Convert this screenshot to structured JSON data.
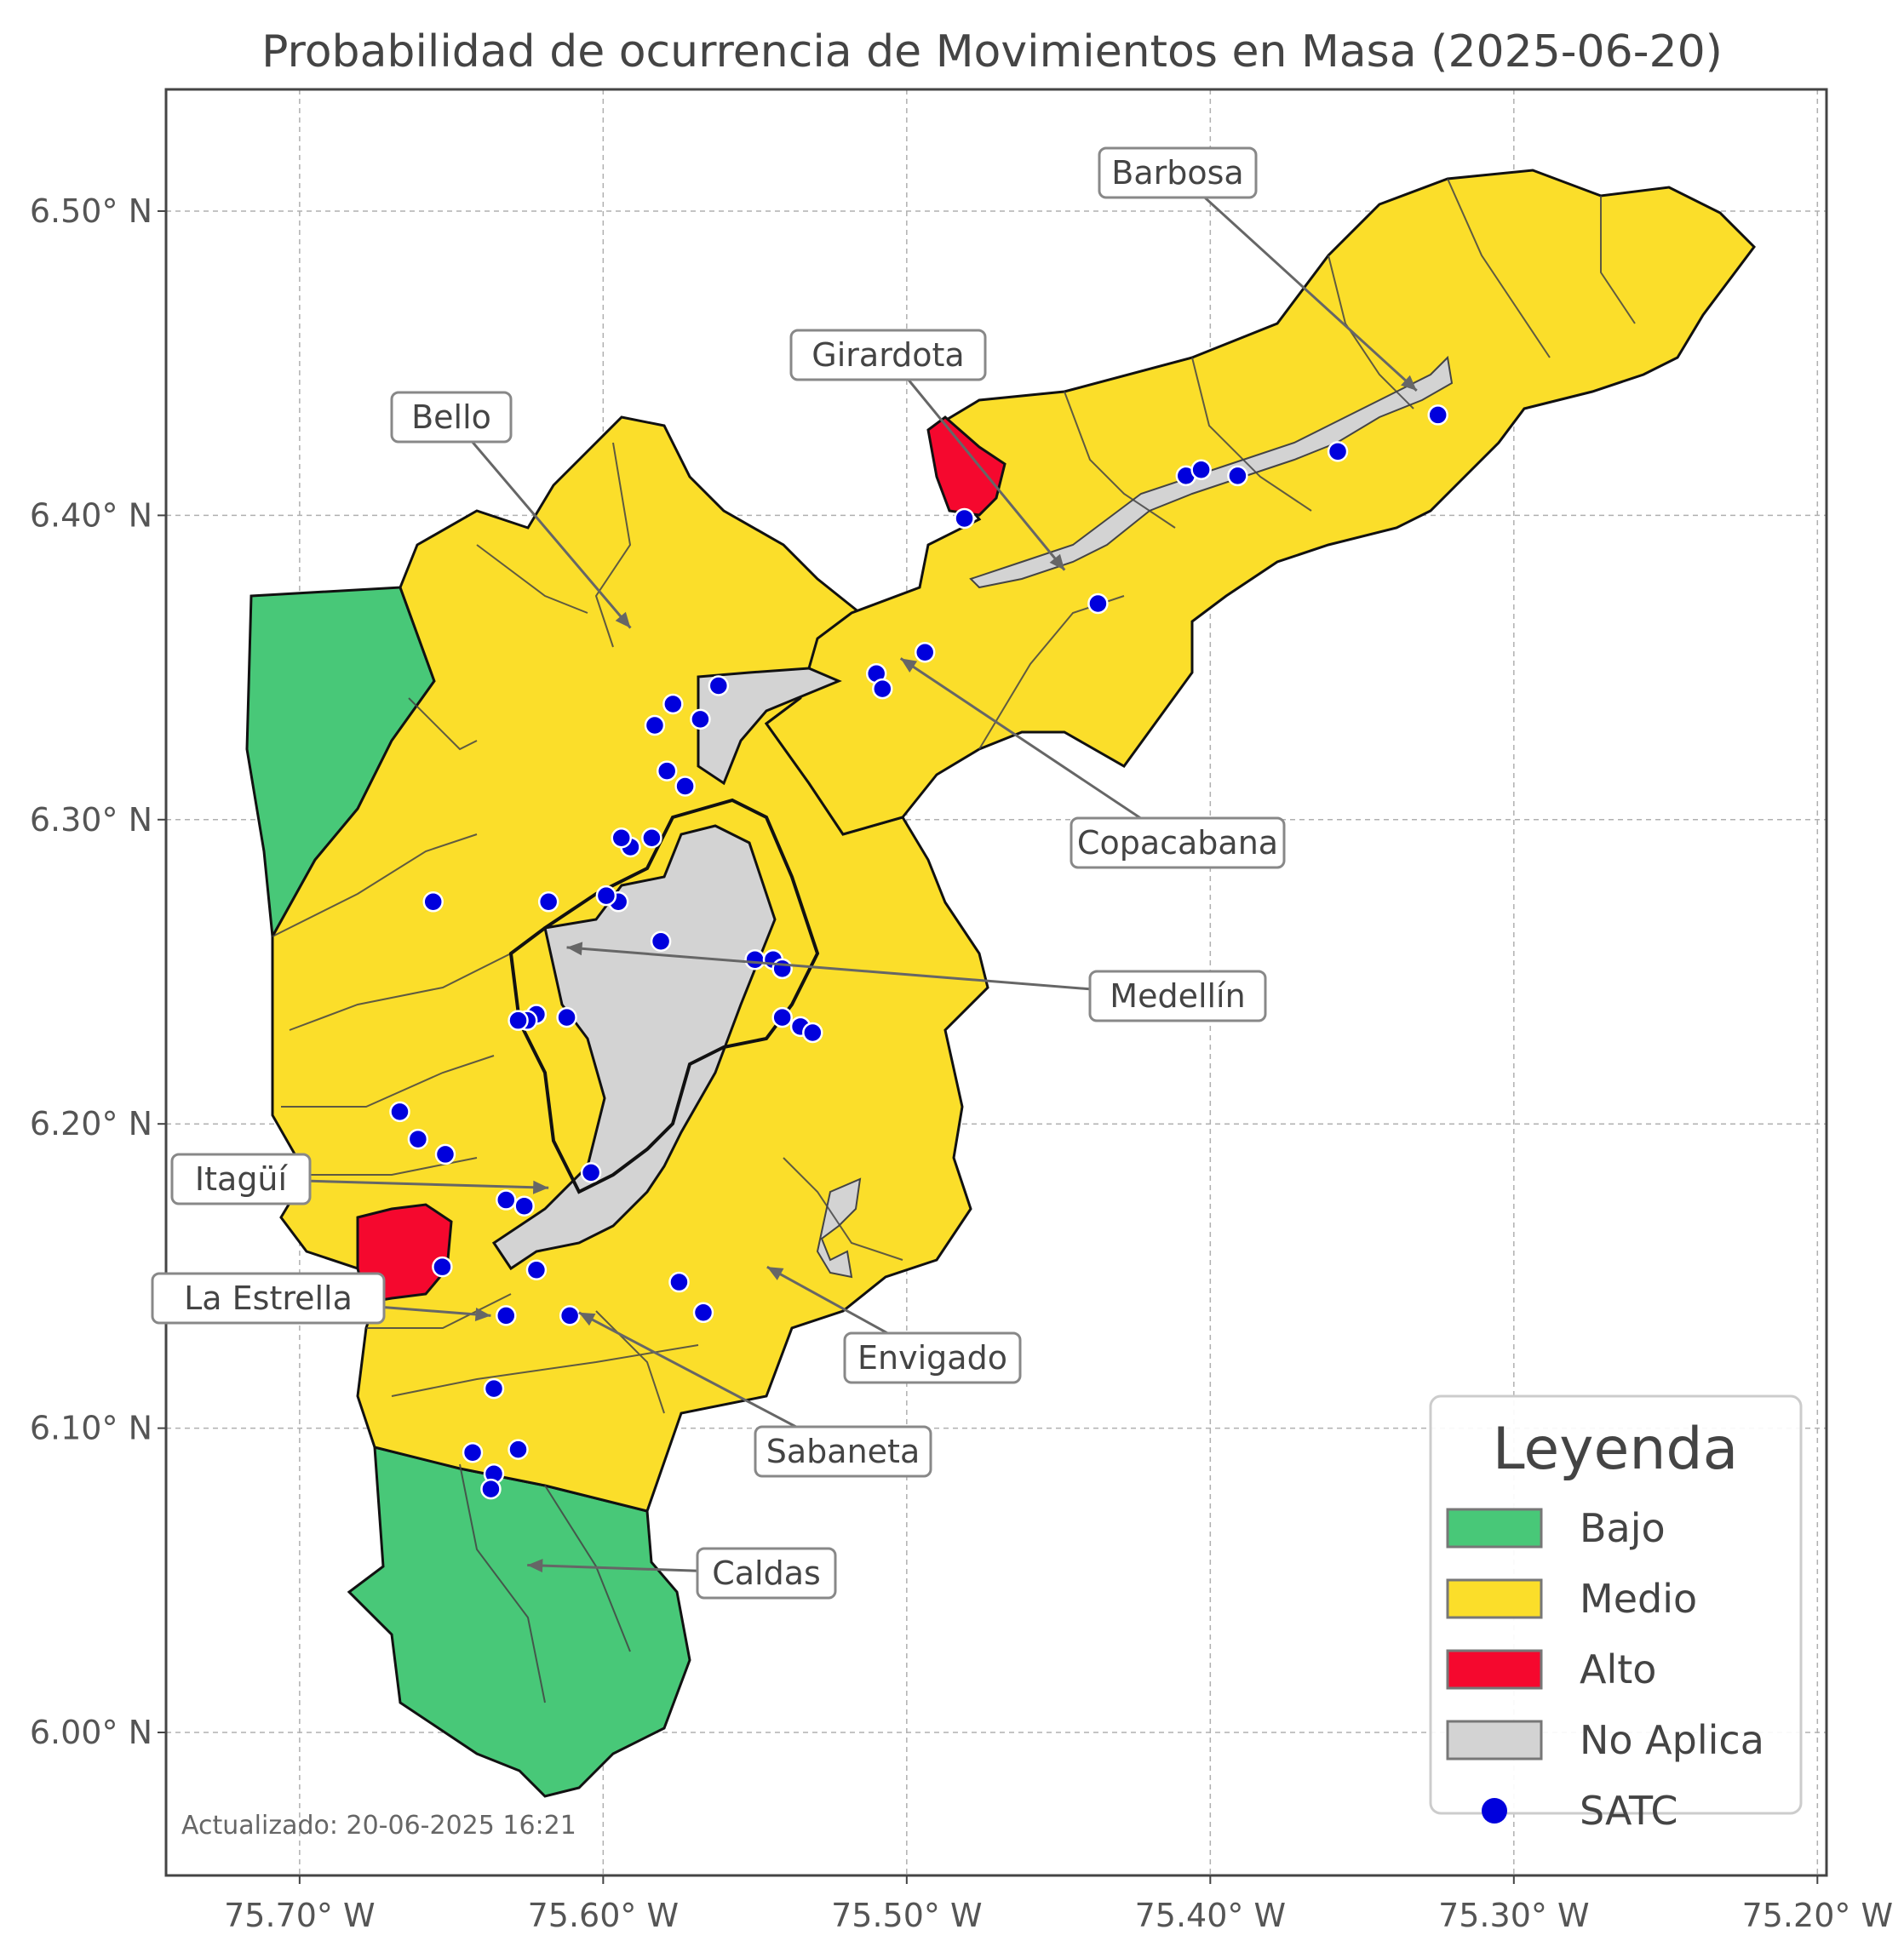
{
  "title": "Probabilidad de ocurrencia de Movimientos en Masa (2025-06-20)",
  "colors": {
    "bajo": "#48c878",
    "medio": "#fbde2a",
    "alto": "#f5082e",
    "no_aplica": "#d3d3d3",
    "satc": "#0000dd",
    "border": "#111111",
    "inner_border": "#444444"
  },
  "axes": {
    "lon_ticks": [
      "75.70° W",
      "75.60° W",
      "75.50° W",
      "75.40° W",
      "75.30° W",
      "75.20° W"
    ],
    "lat_ticks": [
      "6.50° N",
      "6.40° N",
      "6.30° N",
      "6.20° N",
      "6.10° N",
      "6.00° N"
    ],
    "lon_range": [
      -75.744,
      -75.197
    ],
    "lat_range": [
      5.953,
      6.54
    ],
    "grid": true
  },
  "municipalities": [
    {
      "name": "Barbosa",
      "lon": -75.332,
      "lat": 6.441
    },
    {
      "name": "Girardota",
      "lon": -75.448,
      "lat": 6.382
    },
    {
      "name": "Bello",
      "lon": -75.591,
      "lat": 6.363
    },
    {
      "name": "Copacabana",
      "lon": -75.502,
      "lat": 6.353
    },
    {
      "name": "Medellín",
      "lon": -75.612,
      "lat": 6.258
    },
    {
      "name": "Itagüí",
      "lon": -75.618,
      "lat": 6.179
    },
    {
      "name": "La Estrella",
      "lon": -75.637,
      "lat": 6.137
    },
    {
      "name": "Sabaneta",
      "lon": -75.608,
      "lat": 6.138
    },
    {
      "name": "Envigado",
      "lon": -75.546,
      "lat": 6.153
    },
    {
      "name": "Caldas",
      "lon": -75.625,
      "lat": 6.055
    }
  ],
  "legend": {
    "title": "Leyenda",
    "items": [
      {
        "label": "Bajo",
        "kind": "patch",
        "color": "#48c878"
      },
      {
        "label": "Medio",
        "kind": "patch",
        "color": "#fbde2a"
      },
      {
        "label": "Alto",
        "kind": "patch",
        "color": "#f5082e"
      },
      {
        "label": "No Aplica",
        "kind": "patch",
        "color": "#d3d3d3"
      },
      {
        "label": "SATC",
        "kind": "marker",
        "color": "#0000dd"
      }
    ]
  },
  "satc_points": [
    [
      -75.481,
      6.399
    ],
    [
      -75.437,
      6.371
    ],
    [
      -75.408,
      6.413
    ],
    [
      -75.403,
      6.415
    ],
    [
      -75.391,
      6.413
    ],
    [
      -75.358,
      6.421
    ],
    [
      -75.325,
      6.433
    ],
    [
      -75.494,
      6.355
    ],
    [
      -75.51,
      6.348
    ],
    [
      -75.508,
      6.343
    ],
    [
      -75.562,
      6.344
    ],
    [
      -75.568,
      6.333
    ],
    [
      -75.577,
      6.338
    ],
    [
      -75.583,
      6.331
    ],
    [
      -75.579,
      6.316
    ],
    [
      -75.573,
      6.311
    ],
    [
      -75.591,
      6.291
    ],
    [
      -75.594,
      6.294
    ],
    [
      -75.584,
      6.294
    ],
    [
      -75.595,
      6.273
    ],
    [
      -75.599,
      6.275
    ],
    [
      -75.618,
      6.273
    ],
    [
      -75.656,
      6.273
    ],
    [
      -75.581,
      6.26
    ],
    [
      -75.55,
      6.254
    ],
    [
      -75.544,
      6.254
    ],
    [
      -75.541,
      6.251
    ],
    [
      -75.541,
      6.235
    ],
    [
      -75.535,
      6.232
    ],
    [
      -75.531,
      6.23
    ],
    [
      -75.622,
      6.236
    ],
    [
      -75.625,
      6.234
    ],
    [
      -75.628,
      6.234
    ],
    [
      -75.612,
      6.235
    ],
    [
      -75.667,
      6.204
    ],
    [
      -75.661,
      6.195
    ],
    [
      -75.652,
      6.19
    ],
    [
      -75.604,
      6.184
    ],
    [
      -75.632,
      6.175
    ],
    [
      -75.626,
      6.173
    ],
    [
      -75.653,
      6.153
    ],
    [
      -75.622,
      6.152
    ],
    [
      -75.575,
      6.148
    ],
    [
      -75.567,
      6.138
    ],
    [
      -75.632,
      6.137
    ],
    [
      -75.611,
      6.137
    ],
    [
      -75.636,
      6.113
    ],
    [
      -75.643,
      6.092
    ],
    [
      -75.628,
      6.093
    ],
    [
      -75.636,
      6.085
    ],
    [
      -75.637,
      6.08
    ]
  ],
  "updated": "Actualizado: 20-06-2025 16:21"
}
